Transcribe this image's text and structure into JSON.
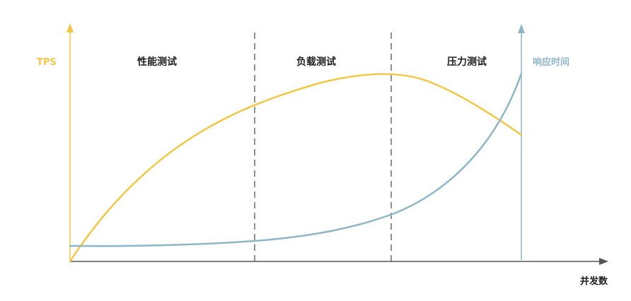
{
  "axes": {
    "left_label": "TPS",
    "right_label": "响应时间",
    "x_label": "并发数"
  },
  "phases": [
    {
      "label": "性能测试"
    },
    {
      "label": "负载测试"
    },
    {
      "label": "压力测试"
    }
  ],
  "colors": {
    "tps": "#f2c744",
    "response_time": "#8fb6c8",
    "axis": "#555555",
    "divider": "#555555",
    "text": "#1f1f1f"
  }
}
